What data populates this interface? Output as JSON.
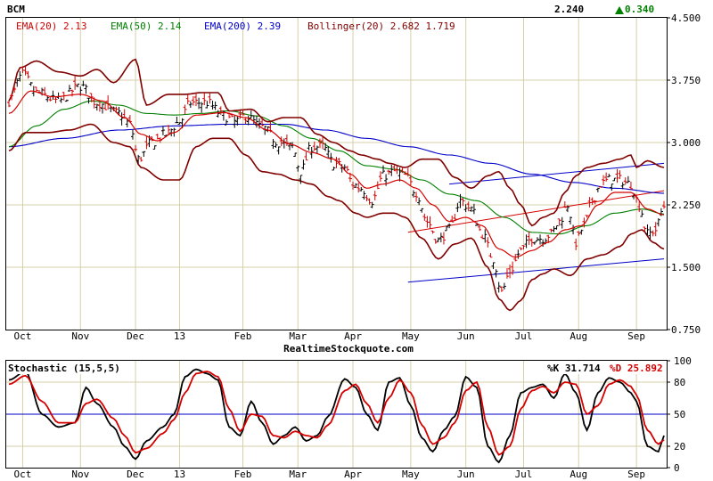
{
  "chart_data": [
    {
      "type": "line",
      "symbol": "BCM",
      "last_price": "2.240",
      "change": "0.340",
      "change_color": "#008000",
      "legend": [
        {
          "text": "EMA(20) 2.13",
          "color": "#d40000"
        },
        {
          "text": "EMA(50) 2.14",
          "color": "#008000"
        },
        {
          "text": "EMA(200) 2.39",
          "color": "#0000c8"
        },
        {
          "text": "Bollinger(20) 2.682 1.719",
          "color": "#800000"
        }
      ],
      "ylim": [
        0.75,
        4.5
      ],
      "y_ticks": [
        "4.500",
        "3.750",
        "3.000",
        "2.250",
        "1.500",
        "0.750"
      ],
      "x_ticks": [
        "Oct",
        "Nov",
        "Dec",
        "13",
        "Feb",
        "Mar",
        "Apr",
        "May",
        "Jun",
        "Jul",
        "Aug",
        "Sep"
      ],
      "x_tick_index": [
        5,
        26,
        46,
        62,
        85,
        105,
        125,
        146,
        166,
        187,
        207,
        228
      ],
      "n_bars": 239,
      "price_key": [
        [
          0,
          3.5
        ],
        [
          5,
          3.82
        ],
        [
          10,
          3.6
        ],
        [
          18,
          3.5
        ],
        [
          26,
          3.68
        ],
        [
          32,
          3.48
        ],
        [
          40,
          3.35
        ],
        [
          44,
          3.22
        ],
        [
          47,
          2.8
        ],
        [
          52,
          3.0
        ],
        [
          57,
          3.1
        ],
        [
          62,
          3.25
        ],
        [
          66,
          3.48
        ],
        [
          72,
          3.48
        ],
        [
          78,
          3.32
        ],
        [
          82,
          3.25
        ],
        [
          86,
          3.32
        ],
        [
          92,
          3.18
        ],
        [
          98,
          3.0
        ],
        [
          103,
          2.95
        ],
        [
          106,
          2.65
        ],
        [
          110,
          2.95
        ],
        [
          114,
          2.95
        ],
        [
          118,
          2.75
        ],
        [
          122,
          2.7
        ],
        [
          125,
          2.5
        ],
        [
          128,
          2.45
        ],
        [
          132,
          2.3
        ],
        [
          136,
          2.6
        ],
        [
          140,
          2.65
        ],
        [
          144,
          2.6
        ],
        [
          148,
          2.4
        ],
        [
          152,
          2.05
        ],
        [
          156,
          1.82
        ],
        [
          160,
          1.95
        ],
        [
          164,
          2.3
        ],
        [
          168,
          2.2
        ],
        [
          172,
          1.9
        ],
        [
          176,
          1.6
        ],
        [
          179,
          1.2
        ],
        [
          182,
          1.45
        ],
        [
          186,
          1.7
        ],
        [
          190,
          1.85
        ],
        [
          194,
          1.85
        ],
        [
          197,
          1.9
        ],
        [
          200,
          2.05
        ],
        [
          203,
          2.25
        ],
        [
          206,
          1.8
        ],
        [
          209,
          2.0
        ],
        [
          212,
          2.3
        ],
        [
          215,
          2.5
        ],
        [
          218,
          2.55
        ],
        [
          222,
          2.55
        ],
        [
          226,
          2.5
        ],
        [
          229,
          2.25
        ],
        [
          232,
          1.9
        ],
        [
          235,
          1.95
        ],
        [
          238,
          2.24
        ]
      ],
      "ema20_key": [
        [
          0,
          3.35
        ],
        [
          8,
          3.62
        ],
        [
          16,
          3.55
        ],
        [
          26,
          3.58
        ],
        [
          34,
          3.5
        ],
        [
          42,
          3.3
        ],
        [
          48,
          3.1
        ],
        [
          54,
          3.02
        ],
        [
          60,
          3.12
        ],
        [
          68,
          3.33
        ],
        [
          78,
          3.36
        ],
        [
          86,
          3.3
        ],
        [
          94,
          3.15
        ],
        [
          102,
          2.98
        ],
        [
          110,
          2.88
        ],
        [
          118,
          2.8
        ],
        [
          124,
          2.62
        ],
        [
          130,
          2.45
        ],
        [
          136,
          2.5
        ],
        [
          142,
          2.55
        ],
        [
          148,
          2.45
        ],
        [
          154,
          2.25
        ],
        [
          160,
          2.05
        ],
        [
          166,
          2.1
        ],
        [
          172,
          2.0
        ],
        [
          178,
          1.72
        ],
        [
          184,
          1.62
        ],
        [
          190,
          1.7
        ],
        [
          196,
          1.8
        ],
        [
          202,
          1.95
        ],
        [
          208,
          2.0
        ],
        [
          214,
          2.25
        ],
        [
          220,
          2.4
        ],
        [
          226,
          2.4
        ],
        [
          232,
          2.2
        ],
        [
          238,
          2.13
        ]
      ],
      "ema50_key": [
        [
          0,
          2.95
        ],
        [
          10,
          3.2
        ],
        [
          20,
          3.4
        ],
        [
          30,
          3.5
        ],
        [
          40,
          3.45
        ],
        [
          50,
          3.35
        ],
        [
          60,
          3.33
        ],
        [
          70,
          3.35
        ],
        [
          80,
          3.38
        ],
        [
          90,
          3.32
        ],
        [
          100,
          3.2
        ],
        [
          110,
          3.05
        ],
        [
          120,
          2.9
        ],
        [
          130,
          2.72
        ],
        [
          140,
          2.68
        ],
        [
          150,
          2.55
        ],
        [
          160,
          2.38
        ],
        [
          170,
          2.3
        ],
        [
          180,
          2.1
        ],
        [
          190,
          1.92
        ],
        [
          200,
          1.9
        ],
        [
          210,
          2.0
        ],
        [
          220,
          2.15
        ],
        [
          230,
          2.2
        ],
        [
          238,
          2.14
        ]
      ],
      "ema200_key": [
        [
          0,
          2.95
        ],
        [
          20,
          3.05
        ],
        [
          40,
          3.15
        ],
        [
          60,
          3.2
        ],
        [
          80,
          3.22
        ],
        [
          100,
          3.22
        ],
        [
          115,
          3.15
        ],
        [
          130,
          3.05
        ],
        [
          145,
          2.95
        ],
        [
          160,
          2.85
        ],
        [
          175,
          2.75
        ],
        [
          190,
          2.62
        ],
        [
          205,
          2.52
        ],
        [
          220,
          2.45
        ],
        [
          238,
          2.39
        ]
      ],
      "bb_upper_key": [
        [
          0,
          3.5
        ],
        [
          4,
          3.9
        ],
        [
          10,
          3.98
        ],
        [
          18,
          3.85
        ],
        [
          26,
          3.8
        ],
        [
          32,
          3.88
        ],
        [
          38,
          3.72
        ],
        [
          46,
          4.0
        ],
        [
          50,
          3.45
        ],
        [
          58,
          3.58
        ],
        [
          64,
          3.58
        ],
        [
          70,
          3.6
        ],
        [
          76,
          3.6
        ],
        [
          80,
          3.38
        ],
        [
          88,
          3.4
        ],
        [
          94,
          3.25
        ],
        [
          100,
          3.3
        ],
        [
          106,
          3.3
        ],
        [
          112,
          3.1
        ],
        [
          118,
          3.0
        ],
        [
          124,
          2.9
        ],
        [
          128,
          2.85
        ],
        [
          134,
          2.8
        ],
        [
          138,
          2.75
        ],
        [
          144,
          2.7
        ],
        [
          150,
          2.8
        ],
        [
          156,
          2.8
        ],
        [
          162,
          2.58
        ],
        [
          168,
          2.45
        ],
        [
          174,
          2.6
        ],
        [
          178,
          2.65
        ],
        [
          182,
          2.45
        ],
        [
          186,
          2.25
        ],
        [
          190,
          2.0
        ],
        [
          194,
          2.1
        ],
        [
          198,
          2.15
        ],
        [
          202,
          2.4
        ],
        [
          206,
          2.6
        ],
        [
          210,
          2.7
        ],
        [
          216,
          2.75
        ],
        [
          222,
          2.8
        ],
        [
          226,
          2.85
        ],
        [
          228,
          2.7
        ],
        [
          232,
          2.78
        ],
        [
          238,
          2.7
        ]
      ],
      "bb_lower_key": [
        [
          0,
          2.9
        ],
        [
          6,
          3.12
        ],
        [
          14,
          3.12
        ],
        [
          22,
          3.15
        ],
        [
          30,
          3.22
        ],
        [
          38,
          3.0
        ],
        [
          44,
          2.95
        ],
        [
          48,
          2.7
        ],
        [
          56,
          2.55
        ],
        [
          62,
          2.55
        ],
        [
          68,
          2.95
        ],
        [
          74,
          3.05
        ],
        [
          80,
          3.05
        ],
        [
          86,
          2.85
        ],
        [
          92,
          2.65
        ],
        [
          98,
          2.62
        ],
        [
          104,
          2.55
        ],
        [
          110,
          2.5
        ],
        [
          116,
          2.35
        ],
        [
          120,
          2.3
        ],
        [
          126,
          2.15
        ],
        [
          130,
          2.1
        ],
        [
          136,
          2.15
        ],
        [
          140,
          2.15
        ],
        [
          144,
          2.1
        ],
        [
          150,
          1.85
        ],
        [
          156,
          1.6
        ],
        [
          162,
          1.78
        ],
        [
          168,
          1.85
        ],
        [
          174,
          1.5
        ],
        [
          178,
          1.12
        ],
        [
          182,
          0.98
        ],
        [
          186,
          1.1
        ],
        [
          190,
          1.35
        ],
        [
          194,
          1.42
        ],
        [
          198,
          1.48
        ],
        [
          204,
          1.4
        ],
        [
          210,
          1.6
        ],
        [
          216,
          1.65
        ],
        [
          222,
          1.75
        ],
        [
          226,
          1.9
        ],
        [
          230,
          1.95
        ],
        [
          234,
          1.8
        ],
        [
          238,
          1.72
        ]
      ],
      "trend_upper": [
        [
          145,
          1.92
        ],
        [
          238,
          2.42
        ]
      ],
      "trend_lower": [
        [
          145,
          1.32
        ],
        [
          238,
          1.6
        ]
      ],
      "trend_resist": [
        [
          160,
          2.5
        ],
        [
          238,
          2.75
        ]
      ]
    },
    {
      "type": "line",
      "title": "Stochastic (15,5,5)",
      "k_label": "%K 31.714",
      "d_label": "%D 25.892",
      "k_color": "#000000",
      "d_color": "#d40000",
      "ylim": [
        0,
        100
      ],
      "y_ticks": [
        "100",
        "80",
        "50",
        "20",
        "0"
      ],
      "y_tick_values": [
        100,
        80,
        50,
        20,
        0
      ],
      "ref_line": 50,
      "k_key": [
        [
          0,
          82
        ],
        [
          6,
          90
        ],
        [
          12,
          50
        ],
        [
          18,
          38
        ],
        [
          24,
          42
        ],
        [
          28,
          75
        ],
        [
          32,
          60
        ],
        [
          38,
          38
        ],
        [
          42,
          20
        ],
        [
          46,
          8
        ],
        [
          50,
          25
        ],
        [
          56,
          38
        ],
        [
          60,
          50
        ],
        [
          64,
          85
        ],
        [
          68,
          92
        ],
        [
          72,
          88
        ],
        [
          76,
          82
        ],
        [
          80,
          38
        ],
        [
          84,
          30
        ],
        [
          88,
          62
        ],
        [
          92,
          42
        ],
        [
          96,
          22
        ],
        [
          100,
          30
        ],
        [
          104,
          38
        ],
        [
          108,
          25
        ],
        [
          112,
          30
        ],
        [
          116,
          48
        ],
        [
          122,
          83
        ],
        [
          126,
          75
        ],
        [
          130,
          50
        ],
        [
          134,
          35
        ],
        [
          138,
          80
        ],
        [
          142,
          84
        ],
        [
          146,
          58
        ],
        [
          150,
          28
        ],
        [
          154,
          15
        ],
        [
          158,
          35
        ],
        [
          162,
          48
        ],
        [
          166,
          85
        ],
        [
          170,
          75
        ],
        [
          174,
          20
        ],
        [
          178,
          5
        ],
        [
          182,
          30
        ],
        [
          186,
          70
        ],
        [
          190,
          75
        ],
        [
          194,
          78
        ],
        [
          198,
          65
        ],
        [
          202,
          88
        ],
        [
          206,
          70
        ],
        [
          210,
          35
        ],
        [
          214,
          70
        ],
        [
          218,
          84
        ],
        [
          222,
          80
        ],
        [
          226,
          70
        ],
        [
          228,
          62
        ],
        [
          232,
          20
        ],
        [
          236,
          15
        ],
        [
          238,
          30
        ]
      ],
      "d_key": [
        [
          0,
          78
        ],
        [
          6,
          86
        ],
        [
          12,
          62
        ],
        [
          18,
          42
        ],
        [
          24,
          42
        ],
        [
          28,
          60
        ],
        [
          32,
          64
        ],
        [
          38,
          46
        ],
        [
          42,
          30
        ],
        [
          46,
          14
        ],
        [
          50,
          18
        ],
        [
          56,
          32
        ],
        [
          60,
          45
        ],
        [
          64,
          70
        ],
        [
          68,
          88
        ],
        [
          72,
          90
        ],
        [
          76,
          85
        ],
        [
          80,
          55
        ],
        [
          84,
          34
        ],
        [
          88,
          50
        ],
        [
          92,
          48
        ],
        [
          96,
          30
        ],
        [
          100,
          28
        ],
        [
          104,
          34
        ],
        [
          108,
          30
        ],
        [
          112,
          28
        ],
        [
          116,
          40
        ],
        [
          122,
          72
        ],
        [
          126,
          78
        ],
        [
          130,
          60
        ],
        [
          134,
          42
        ],
        [
          138,
          65
        ],
        [
          142,
          82
        ],
        [
          146,
          70
        ],
        [
          150,
          40
        ],
        [
          154,
          22
        ],
        [
          158,
          28
        ],
        [
          162,
          42
        ],
        [
          166,
          72
        ],
        [
          170,
          80
        ],
        [
          174,
          38
        ],
        [
          178,
          12
        ],
        [
          182,
          20
        ],
        [
          186,
          55
        ],
        [
          190,
          72
        ],
        [
          194,
          76
        ],
        [
          198,
          70
        ],
        [
          202,
          80
        ],
        [
          206,
          78
        ],
        [
          210,
          50
        ],
        [
          214,
          58
        ],
        [
          218,
          78
        ],
        [
          222,
          82
        ],
        [
          226,
          76
        ],
        [
          228,
          68
        ],
        [
          232,
          35
        ],
        [
          236,
          22
        ],
        [
          238,
          26
        ]
      ]
    }
  ],
  "watermark": "RealtimeStockquote.com"
}
